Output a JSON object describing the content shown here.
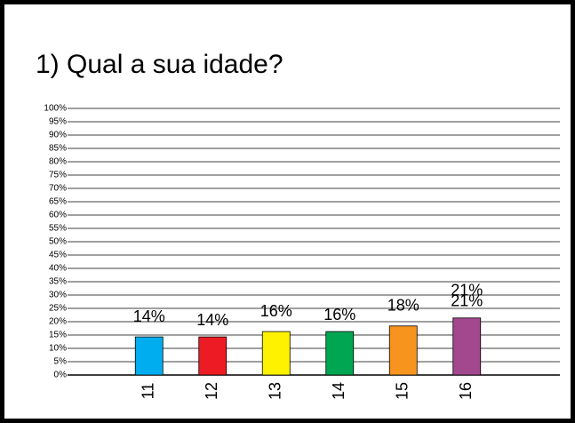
{
  "chart_data": {
    "type": "bar",
    "title": "1) Qual a sua idade?",
    "categories": [
      "11",
      "12",
      "13",
      "14",
      "15",
      "16"
    ],
    "values": [
      14.3,
      14.3,
      16.3,
      16.3,
      18.4,
      21.4
    ],
    "value_labels": [
      "14%",
      "14%",
      "16%",
      "16%",
      "18%",
      "21%"
    ],
    "colors": [
      "#00aeef",
      "#ed1c24",
      "#fff200",
      "#00a651",
      "#f7941d",
      "#a3478f"
    ],
    "ylim": [
      0,
      100
    ],
    "yticks": [
      {
        "value": 0,
        "label": "0%"
      },
      {
        "value": 5,
        "label": "5%"
      },
      {
        "value": 10,
        "label": "10%"
      },
      {
        "value": 15,
        "label": "15%"
      },
      {
        "value": 20,
        "label": "20%"
      },
      {
        "value": 25,
        "label": "25%"
      },
      {
        "value": 30,
        "label": "30%"
      },
      {
        "value": 35,
        "label": "35%"
      },
      {
        "value": 40,
        "label": "40%"
      },
      {
        "value": 45,
        "label": "45%"
      },
      {
        "value": 50,
        "label": "50%"
      },
      {
        "value": 55,
        "label": "55%"
      },
      {
        "value": 60,
        "label": "60%"
      },
      {
        "value": 65,
        "label": "65%"
      },
      {
        "value": 70,
        "label": "70%"
      },
      {
        "value": 75,
        "label": "75%"
      },
      {
        "value": 80,
        "label": "80%"
      },
      {
        "value": 85,
        "label": "85%"
      },
      {
        "value": 90,
        "label": "90%"
      },
      {
        "value": 95,
        "label": "95%"
      },
      {
        "value": 100,
        "label": "100%"
      }
    ],
    "grid": true
  }
}
